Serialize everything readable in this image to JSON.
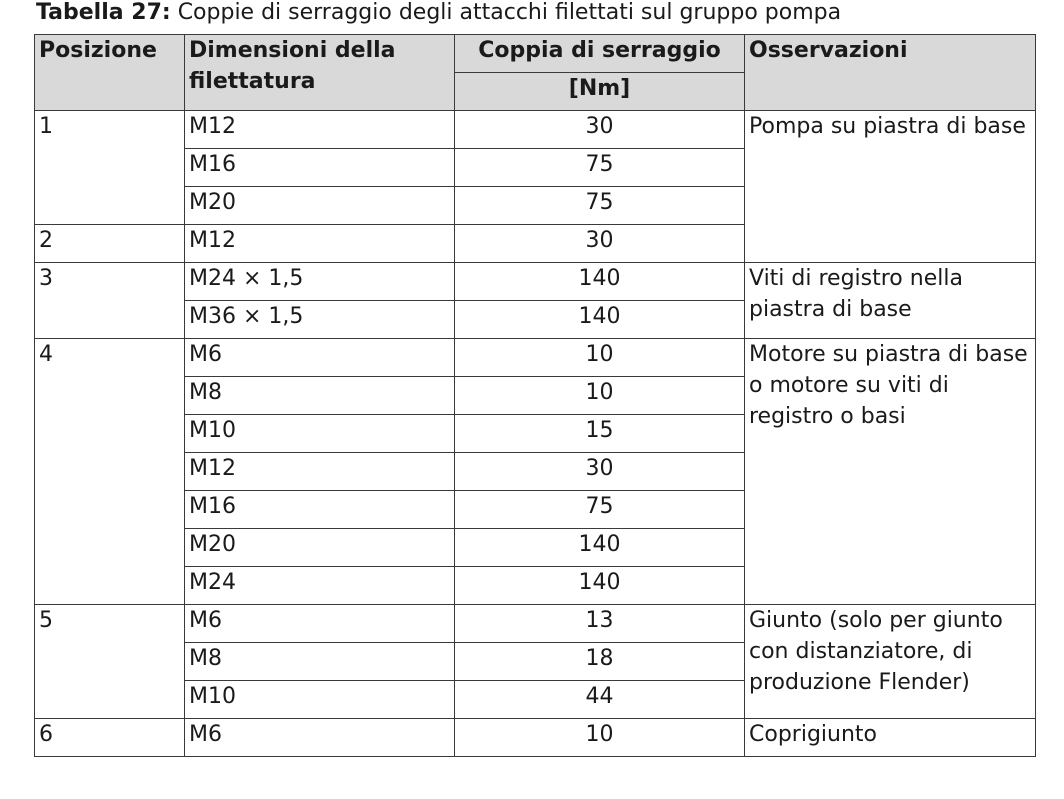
{
  "caption": {
    "label": "Tabella 27:",
    "text": "Coppie di serraggio degli attacchi filettati sul gruppo pompa"
  },
  "headers": {
    "position": "Posizione",
    "thread_size": "Dimensioni della filettatura",
    "torque": "Coppia di serraggio",
    "unit": "[Nm]",
    "notes": "Osservazioni"
  },
  "rows": [
    {
      "pos": "1",
      "thread": "M12",
      "torque": "30"
    },
    {
      "thread": "M16",
      "torque": "75"
    },
    {
      "thread": "M20",
      "torque": "75"
    },
    {
      "pos": "2",
      "thread": "M12",
      "torque": "30"
    },
    {
      "pos": "3",
      "thread": "M24 × 1,5",
      "torque": "140"
    },
    {
      "thread": "M36 × 1,5",
      "torque": "140"
    },
    {
      "pos": "4",
      "thread": "M6",
      "torque": "10"
    },
    {
      "thread": "M8",
      "torque": "10"
    },
    {
      "thread": "M10",
      "torque": "15"
    },
    {
      "thread": "M12",
      "torque": "30"
    },
    {
      "thread": "M16",
      "torque": "75"
    },
    {
      "thread": "M20",
      "torque": "140"
    },
    {
      "thread": "M24",
      "torque": "140"
    },
    {
      "pos": "5",
      "thread": "M6",
      "torque": "13"
    },
    {
      "thread": "M8",
      "torque": "18"
    },
    {
      "thread": "M10",
      "torque": "44"
    },
    {
      "pos": "6",
      "thread": "M6",
      "torque": "10"
    }
  ],
  "notes": [
    "Pompa su piastra di base",
    "Viti di registro nella piastra di base",
    "Motore su piastra di base o motore su viti di registro o basi",
    "Giunto (solo per giunto con distanziatore, di produzione Flender)",
    "Coprigiunto"
  ]
}
